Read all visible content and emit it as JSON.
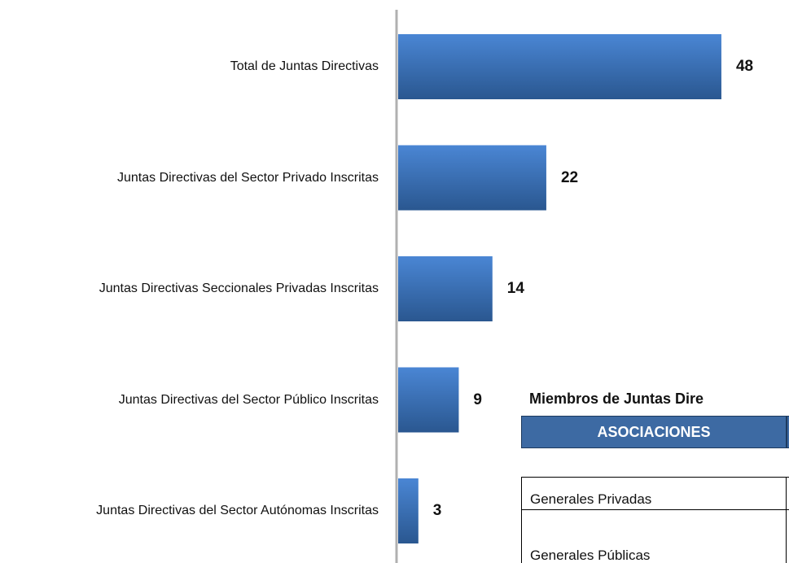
{
  "chart_data": {
    "type": "hbar",
    "categories": [
      "Total de Juntas Directivas",
      "Juntas Directivas del Sector Privado  Inscritas",
      "Juntas Directivas Seccionales Privadas Inscritas",
      "Juntas Directivas del Sector Público Inscritas",
      "Juntas Directivas del Sector Autónomas Inscritas"
    ],
    "values": [
      48,
      22,
      14,
      9,
      3
    ],
    "color": "#3f76c0"
  },
  "table": {
    "title": "Miembros de Juntas Dire",
    "header": [
      "ASOCIACIONES"
    ],
    "rows": [
      [
        "Generales Privadas"
      ],
      [
        "Generales Públicas"
      ]
    ]
  }
}
